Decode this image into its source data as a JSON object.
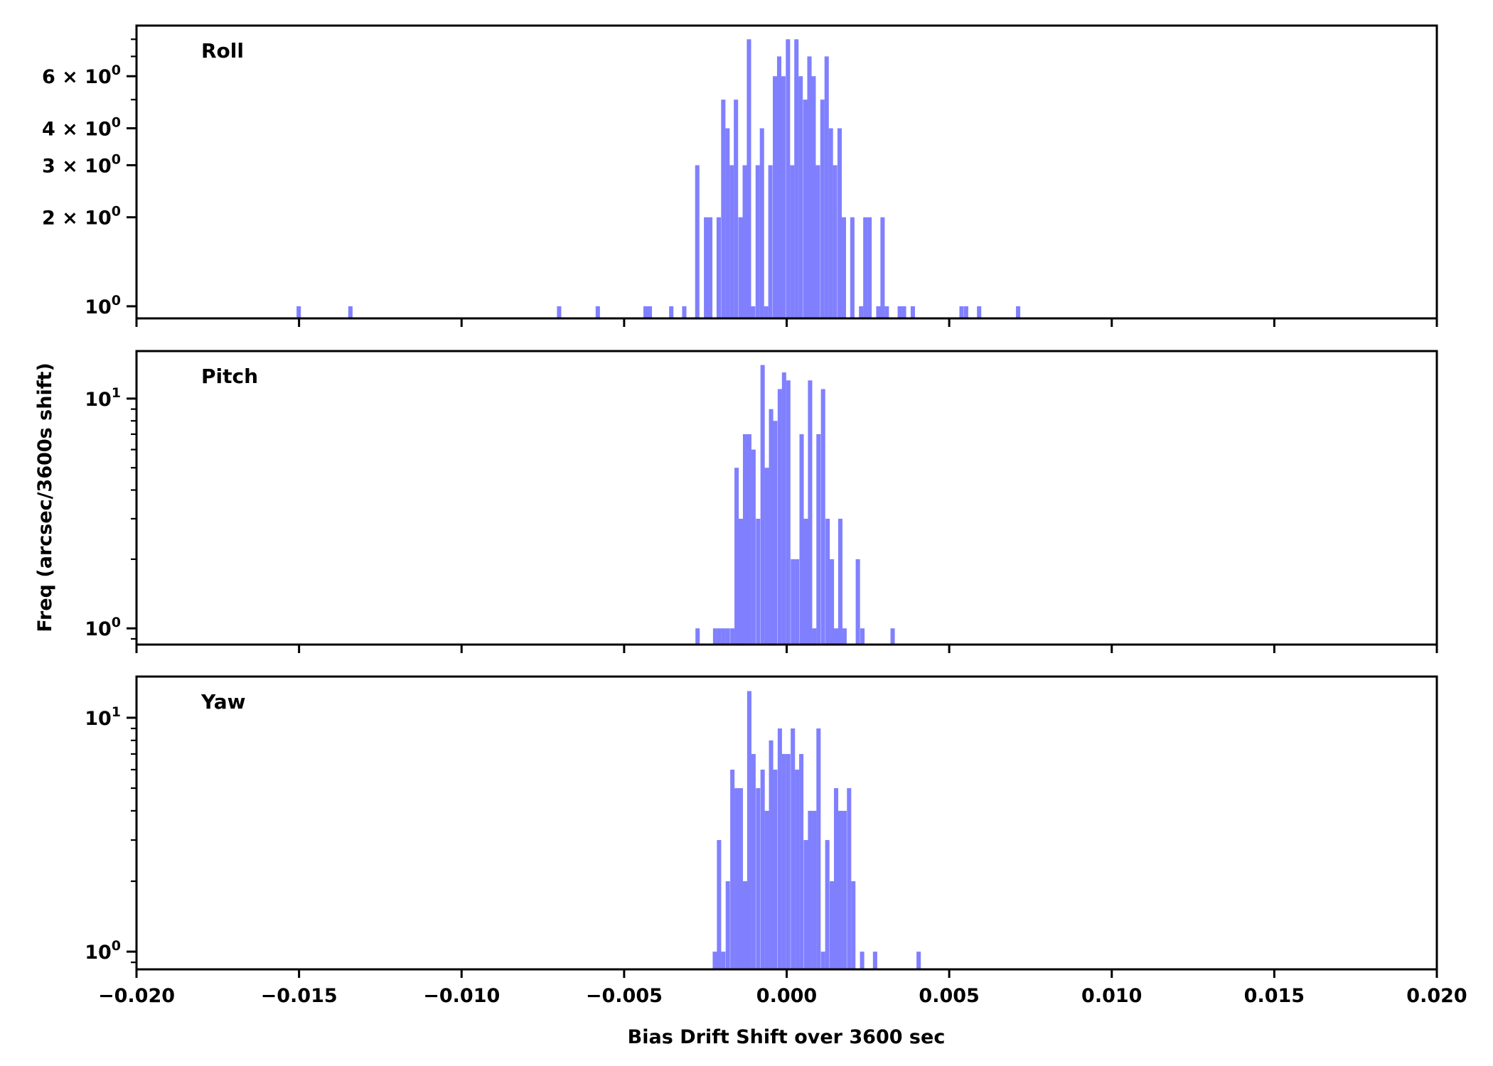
{
  "chart_data": [
    {
      "type": "bar",
      "title": "Roll",
      "xlabel": "Bias Drift Shift over 3600 sec",
      "ylabel": "Freq (arcsec/3600s shift)",
      "xlim": [
        -0.02,
        0.02
      ],
      "ylim": [
        0.91,
        8.9
      ],
      "yscale": "log",
      "grid": false,
      "color": "#8080ff",
      "bin_width": 0.0001326,
      "yticks": [
        {
          "value": 1,
          "base": "10",
          "exp": "0"
        },
        {
          "value": 2,
          "base": "2 × 10",
          "exp": "0"
        },
        {
          "value": 3,
          "base": "3 × 10",
          "exp": "0"
        },
        {
          "value": 4,
          "base": "4 × 10",
          "exp": "0"
        },
        {
          "value": 6,
          "base": "6 × 10",
          "exp": "0"
        }
      ],
      "yminor": [
        5,
        7,
        8
      ],
      "bins": [
        [
          -0.01501,
          1
        ],
        [
          -0.01342,
          1
        ],
        [
          -0.007,
          1
        ],
        [
          -0.00581,
          1
        ],
        [
          -0.00434,
          1
        ],
        [
          -0.00421,
          1
        ],
        [
          -0.00355,
          1
        ],
        [
          -0.00315,
          1
        ],
        [
          -0.00275,
          3
        ],
        [
          -0.00248,
          2
        ],
        [
          -0.00235,
          2
        ],
        [
          -0.00209,
          2
        ],
        [
          -0.00195,
          5
        ],
        [
          -0.00182,
          4
        ],
        [
          -0.00169,
          3
        ],
        [
          -0.00156,
          5
        ],
        [
          -0.00142,
          2
        ],
        [
          -0.00129,
          3
        ],
        [
          -0.00116,
          8
        ],
        [
          -0.00103,
          1
        ],
        [
          -0.00089,
          3
        ],
        [
          -0.00076,
          4
        ],
        [
          -0.00063,
          1
        ],
        [
          -0.0005,
          3
        ],
        [
          -0.00036,
          6
        ],
        [
          -0.00023,
          7
        ],
        [
          -0.0001,
          6
        ],
        [
          4e-05,
          8
        ],
        [
          0.00017,
          3
        ],
        [
          0.0003,
          8
        ],
        [
          0.00043,
          6
        ],
        [
          0.00057,
          5
        ],
        [
          0.0007,
          7
        ],
        [
          0.00083,
          6
        ],
        [
          0.00096,
          3
        ],
        [
          0.0011,
          5
        ],
        [
          0.00123,
          7
        ],
        [
          0.00136,
          4
        ],
        [
          0.00149,
          3
        ],
        [
          0.00163,
          4
        ],
        [
          0.00176,
          2
        ],
        [
          0.00202,
          2
        ],
        [
          0.00229,
          1
        ],
        [
          0.00242,
          2
        ],
        [
          0.00255,
          2
        ],
        [
          0.00282,
          1
        ],
        [
          0.00295,
          2
        ],
        [
          0.00308,
          1
        ],
        [
          0.00348,
          1
        ],
        [
          0.00361,
          1
        ],
        [
          0.00388,
          1
        ],
        [
          0.00538,
          1
        ],
        [
          0.00552,
          1
        ],
        [
          0.00592,
          1
        ],
        [
          0.00712,
          1
        ]
      ]
    },
    {
      "type": "bar",
      "title": "Pitch",
      "xlim": [
        -0.02,
        0.02
      ],
      "ylim": [
        0.85,
        16.1
      ],
      "yscale": "log",
      "grid": false,
      "color": "#8080ff",
      "bin_width": 0.0001326,
      "yticks": [
        {
          "value": 1,
          "base": "10",
          "exp": "0"
        },
        {
          "value": 10,
          "base": "10",
          "exp": "1"
        }
      ],
      "yminor": [
        0.9,
        2,
        3,
        4,
        5,
        6,
        7,
        8,
        9
      ],
      "bins": [
        [
          -0.00274,
          1
        ],
        [
          -0.0022,
          1
        ],
        [
          -0.00207,
          1
        ],
        [
          -0.00194,
          1
        ],
        [
          -0.00181,
          1
        ],
        [
          -0.00167,
          1
        ],
        [
          -0.00154,
          5
        ],
        [
          -0.00141,
          3
        ],
        [
          -0.00128,
          7
        ],
        [
          -0.00115,
          7
        ],
        [
          -0.00102,
          6
        ],
        [
          -0.00088,
          3
        ],
        [
          -0.00074,
          14
        ],
        [
          -0.00061,
          5
        ],
        [
          -0.00048,
          9
        ],
        [
          -0.00035,
          8
        ],
        [
          -0.00021,
          11
        ],
        [
          -8e-05,
          13
        ],
        [
          5e-05,
          12
        ],
        [
          0.00019,
          2
        ],
        [
          0.00032,
          2
        ],
        [
          0.00046,
          7
        ],
        [
          0.00059,
          3
        ],
        [
          0.00072,
          12
        ],
        [
          0.00085,
          1
        ],
        [
          0.00098,
          7
        ],
        [
          0.00112,
          11
        ],
        [
          0.00126,
          3
        ],
        [
          0.00139,
          2
        ],
        [
          0.00152,
          1
        ],
        [
          0.00165,
          3
        ],
        [
          0.00178,
          1
        ],
        [
          0.00219,
          2
        ],
        [
          0.00233,
          1
        ],
        [
          0.00326,
          1
        ]
      ]
    },
    {
      "type": "bar",
      "title": "Yaw",
      "xlim": [
        -0.02,
        0.02
      ],
      "ylim": [
        0.84,
        15.0
      ],
      "yscale": "log",
      "grid": false,
      "color": "#8080ff",
      "bin_width": 0.0001326,
      "yticks": [
        {
          "value": 1,
          "base": "10",
          "exp": "0"
        },
        {
          "value": 10,
          "base": "10",
          "exp": "1"
        }
      ],
      "yminor": [
        0.9,
        2,
        3,
        4,
        5,
        6,
        7,
        8,
        9
      ],
      "xticks": [
        "−0.020",
        "−0.015",
        "−0.010",
        "−0.005",
        "0.000",
        "0.005",
        "0.010",
        "0.015",
        "0.020"
      ],
      "bins": [
        [
          -0.00221,
          1
        ],
        [
          -0.00208,
          3
        ],
        [
          -0.00195,
          1
        ],
        [
          -0.00181,
          2
        ],
        [
          -0.00167,
          6
        ],
        [
          -0.00154,
          5
        ],
        [
          -0.00141,
          5
        ],
        [
          -0.00128,
          2
        ],
        [
          -0.00115,
          13
        ],
        [
          -0.00102,
          7
        ],
        [
          -0.00088,
          5
        ],
        [
          -0.00074,
          6
        ],
        [
          -0.00061,
          4
        ],
        [
          -0.00048,
          8
        ],
        [
          -0.00035,
          6
        ],
        [
          -0.00021,
          9
        ],
        [
          -8e-05,
          7
        ],
        [
          5e-05,
          7
        ],
        [
          0.00019,
          9
        ],
        [
          0.00032,
          6
        ],
        [
          0.00045,
          7
        ],
        [
          0.00059,
          3
        ],
        [
          0.00072,
          4
        ],
        [
          0.00085,
          4
        ],
        [
          0.00098,
          9
        ],
        [
          0.00112,
          1
        ],
        [
          0.00125,
          3
        ],
        [
          0.00139,
          2
        ],
        [
          0.00152,
          5
        ],
        [
          0.00165,
          4
        ],
        [
          0.00178,
          4
        ],
        [
          0.00192,
          5
        ],
        [
          0.00205,
          2
        ],
        [
          0.00232,
          1
        ],
        [
          0.00272,
          1
        ],
        [
          0.00406,
          1
        ]
      ]
    }
  ]
}
